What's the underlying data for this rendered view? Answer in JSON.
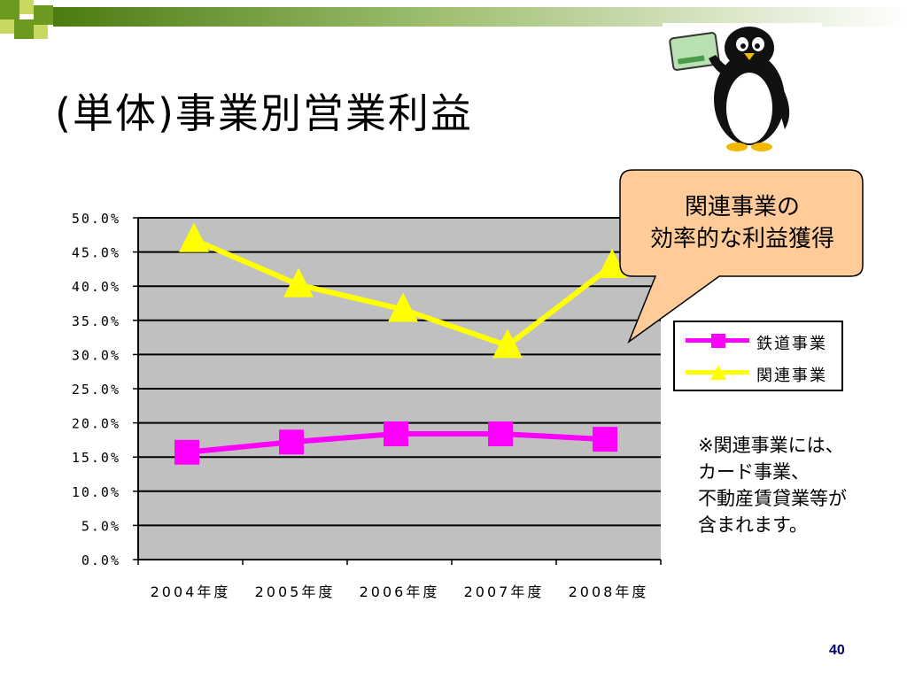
{
  "slide": {
    "title": "(単体)事業別営業利益",
    "callout_line1": "関連事業の",
    "callout_line2": "効率的な利益獲得",
    "note_lines": [
      "※関連事業には、",
      "カード事業、",
      "不動産賃貸業等が",
      "含まれます。"
    ],
    "page_number": "40",
    "accent_green": "#6b9a1e",
    "callout_fill": "#ffcc99"
  },
  "chart_data": {
    "type": "line",
    "categories": [
      "2004年度",
      "2005年度",
      "2006年度",
      "2007年度",
      "2008年度"
    ],
    "series": [
      {
        "name": "鉄道事業",
        "color": "#ff00ff",
        "marker": "square",
        "values": [
          15.7,
          17.2,
          18.4,
          18.4,
          17.6
        ]
      },
      {
        "name": "関連事業",
        "color": "#ffff00",
        "marker": "triangle",
        "values": [
          46.8,
          40.2,
          36.6,
          31.3,
          43.0
        ]
      }
    ],
    "y_ticks": [
      "0.0%",
      "5.0%",
      "10.0%",
      "15.0%",
      "20.0%",
      "25.0%",
      "30.0%",
      "35.0%",
      "40.0%",
      "45.0%",
      "50.0%"
    ],
    "ylim": [
      0,
      50
    ],
    "grid": true,
    "plot_background": "#c0c0c0",
    "legend_position": "right"
  }
}
